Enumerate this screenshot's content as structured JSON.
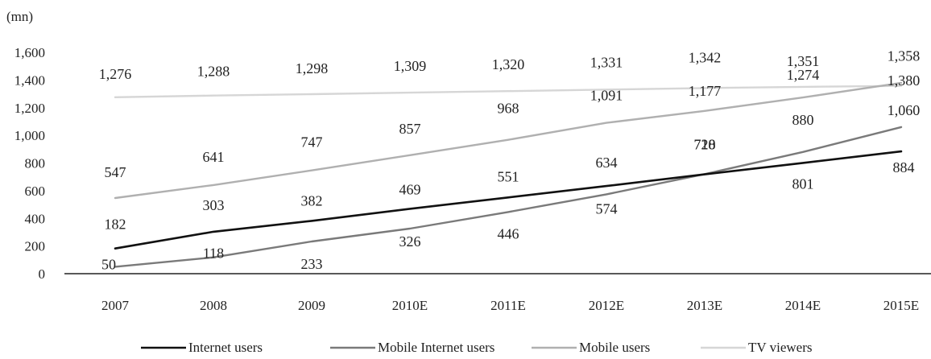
{
  "chart_data": {
    "type": "line",
    "unit_label": "(mn)",
    "categories": [
      "2007",
      "2008",
      "2009",
      "2010E",
      "2011E",
      "2012E",
      "2013E",
      "2014E",
      "2015E"
    ],
    "ylim": [
      0,
      1600
    ],
    "yticks": [
      0,
      200,
      400,
      600,
      800,
      1000,
      1200,
      1400,
      1600
    ],
    "ytick_labels": [
      "0",
      "200",
      "400",
      "600",
      "800",
      "1,000",
      "1,200",
      "1,400",
      "1,600"
    ],
    "grid": false,
    "legend_position": "bottom",
    "series": [
      {
        "name": "Internet users",
        "color": "#111111",
        "values": [
          182,
          303,
          382,
          469,
          551,
          634,
          718,
          801,
          884
        ],
        "labels": [
          "182",
          "303",
          "382",
          "469",
          "551",
          "634",
          "718",
          "801",
          "884"
        ]
      },
      {
        "name": "Mobile Internet users",
        "color": "#7a7a7a",
        "values": [
          50,
          118,
          233,
          326,
          446,
          574,
          720,
          880,
          1060
        ],
        "labels": [
          "50",
          "118",
          "233",
          "326",
          "446",
          "574",
          "720",
          "880",
          "1,060"
        ]
      },
      {
        "name": "Mobile users",
        "color": "#b0b0b0",
        "values": [
          547,
          641,
          747,
          857,
          968,
          1091,
          1177,
          1274,
          1380
        ],
        "labels": [
          "547",
          "641",
          "747",
          "857",
          "968",
          "1,091",
          "1,177",
          "1,274",
          "1,380"
        ]
      },
      {
        "name": "TV viewers",
        "color": "#d6d6d6",
        "values": [
          1276,
          1288,
          1298,
          1309,
          1320,
          1331,
          1342,
          1351,
          1358
        ],
        "labels": [
          "1,276",
          "1,288",
          "1,298",
          "1,309",
          "1,320",
          "1,331",
          "1,342",
          "1,351",
          "1,358"
        ]
      }
    ]
  }
}
